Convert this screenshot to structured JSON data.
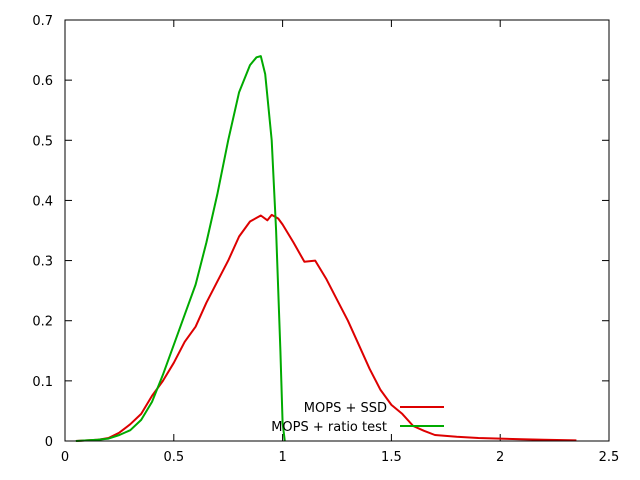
{
  "chart_data": {
    "type": "line",
    "title": "",
    "xlabel": "",
    "ylabel": "",
    "xlim": [
      0,
      2.5
    ],
    "ylim": [
      0,
      0.7
    ],
    "x_ticks": [
      0,
      0.5,
      1,
      1.5,
      2,
      2.5
    ],
    "x_tick_labels": [
      "0",
      "0.5",
      "1",
      "1.5",
      "2",
      "2.5"
    ],
    "y_ticks": [
      0,
      0.1,
      0.2,
      0.3,
      0.4,
      0.5,
      0.6,
      0.7
    ],
    "y_tick_labels": [
      "0",
      "0.1",
      "0.2",
      "0.3",
      "0.4",
      "0.5",
      "0.6",
      "0.7"
    ],
    "grid": false,
    "legend_position": "bottom-center",
    "series": [
      {
        "name": "MOPS + SSD",
        "color": "#dd0000",
        "points": [
          [
            0.05,
            0.0
          ],
          [
            0.15,
            0.002
          ],
          [
            0.2,
            0.005
          ],
          [
            0.25,
            0.014
          ],
          [
            0.3,
            0.028
          ],
          [
            0.35,
            0.045
          ],
          [
            0.4,
            0.075
          ],
          [
            0.45,
            0.1
          ],
          [
            0.5,
            0.13
          ],
          [
            0.55,
            0.165
          ],
          [
            0.6,
            0.19
          ],
          [
            0.65,
            0.23
          ],
          [
            0.7,
            0.265
          ],
          [
            0.75,
            0.3
          ],
          [
            0.8,
            0.34
          ],
          [
            0.85,
            0.365
          ],
          [
            0.9,
            0.375
          ],
          [
            0.93,
            0.367
          ],
          [
            0.95,
            0.376
          ],
          [
            0.98,
            0.37
          ],
          [
            1.0,
            0.36
          ],
          [
            1.05,
            0.33
          ],
          [
            1.1,
            0.298
          ],
          [
            1.15,
            0.3
          ],
          [
            1.2,
            0.27
          ],
          [
            1.25,
            0.235
          ],
          [
            1.3,
            0.2
          ],
          [
            1.35,
            0.16
          ],
          [
            1.4,
            0.12
          ],
          [
            1.45,
            0.085
          ],
          [
            1.5,
            0.06
          ],
          [
            1.55,
            0.045
          ],
          [
            1.6,
            0.025
          ],
          [
            1.65,
            0.017
          ],
          [
            1.7,
            0.01
          ],
          [
            1.8,
            0.007
          ],
          [
            1.9,
            0.005
          ],
          [
            2.0,
            0.004
          ],
          [
            2.1,
            0.003
          ],
          [
            2.2,
            0.002
          ],
          [
            2.35,
            0.001
          ]
        ]
      },
      {
        "name": "MOPS + ratio test",
        "color": "#00aa00",
        "points": [
          [
            0.05,
            0.0
          ],
          [
            0.15,
            0.002
          ],
          [
            0.2,
            0.004
          ],
          [
            0.25,
            0.01
          ],
          [
            0.3,
            0.018
          ],
          [
            0.35,
            0.035
          ],
          [
            0.4,
            0.065
          ],
          [
            0.45,
            0.11
          ],
          [
            0.5,
            0.16
          ],
          [
            0.55,
            0.21
          ],
          [
            0.6,
            0.26
          ],
          [
            0.65,
            0.33
          ],
          [
            0.7,
            0.41
          ],
          [
            0.75,
            0.5
          ],
          [
            0.8,
            0.58
          ],
          [
            0.85,
            0.625
          ],
          [
            0.88,
            0.638
          ],
          [
            0.9,
            0.64
          ],
          [
            0.92,
            0.61
          ],
          [
            0.95,
            0.5
          ],
          [
            0.97,
            0.35
          ],
          [
            0.99,
            0.15
          ],
          [
            1.0,
            0.03
          ],
          [
            1.01,
            0.0
          ]
        ]
      }
    ]
  }
}
